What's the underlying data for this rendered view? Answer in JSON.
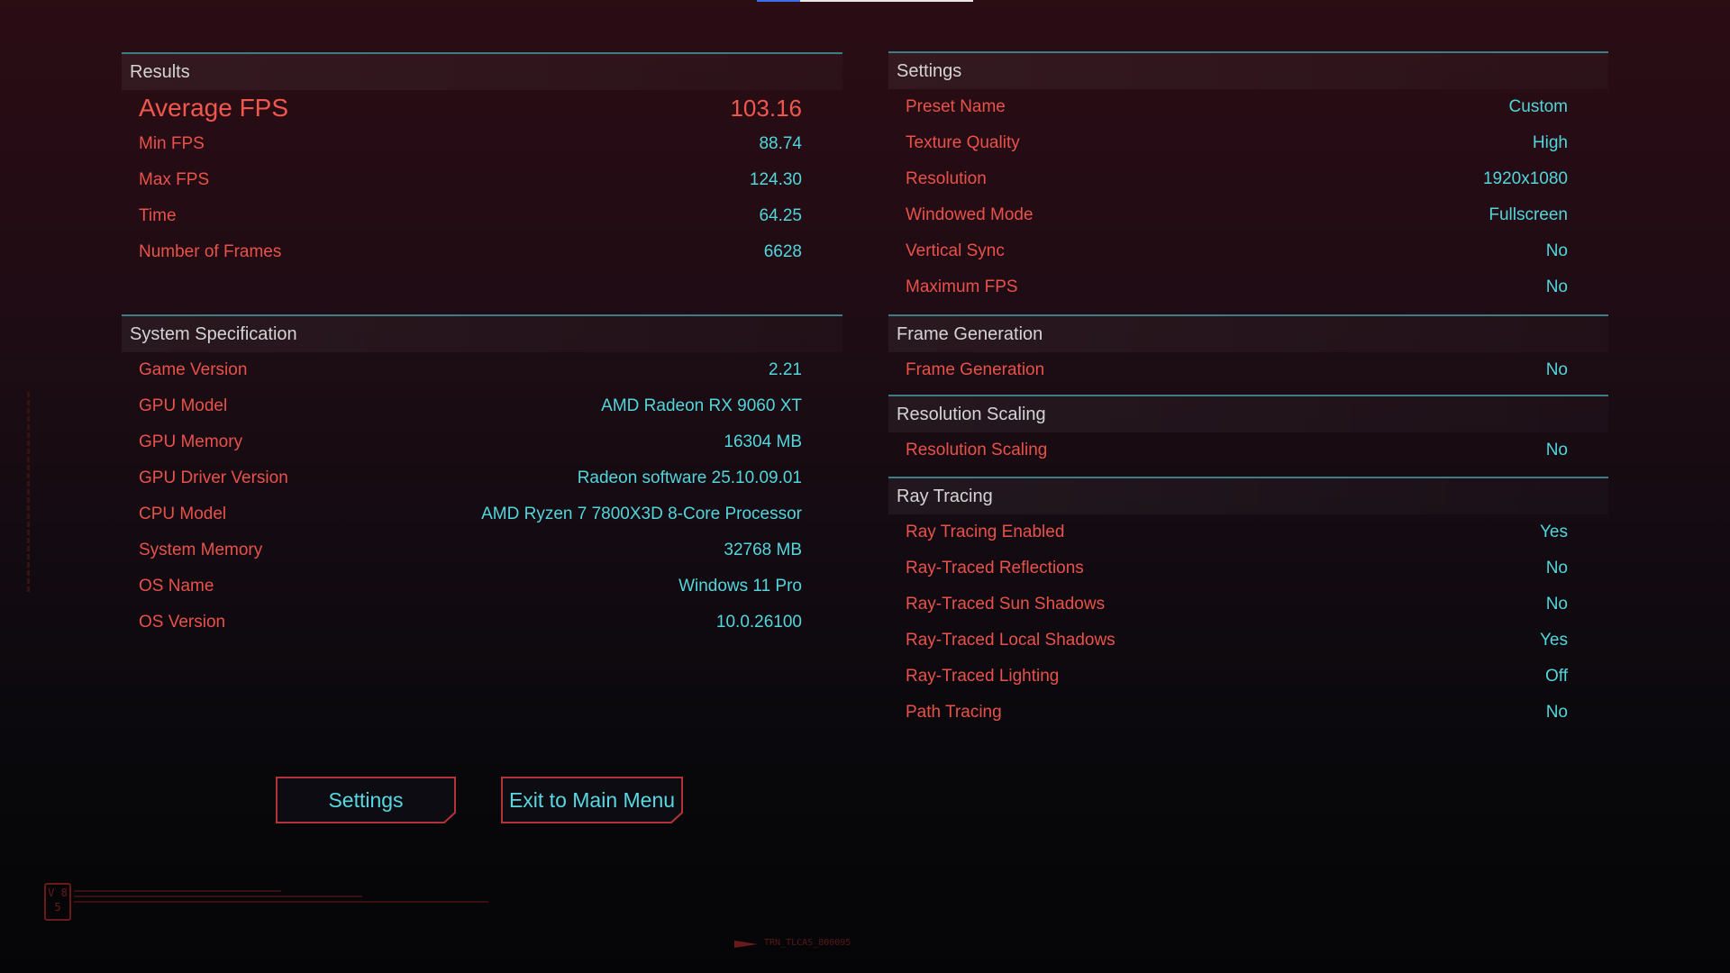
{
  "results": {
    "title": "Results",
    "average": {
      "label": "Average FPS",
      "value": "103.16"
    },
    "rows": [
      {
        "label": "Min FPS",
        "value": "88.74"
      },
      {
        "label": "Max FPS",
        "value": "124.30"
      },
      {
        "label": "Time",
        "value": "64.25"
      },
      {
        "label": "Number of Frames",
        "value": "6628"
      }
    ]
  },
  "system": {
    "title": "System Specification",
    "rows": [
      {
        "label": "Game Version",
        "value": "2.21"
      },
      {
        "label": "GPU Model",
        "value": "AMD Radeon RX 9060 XT"
      },
      {
        "label": "GPU Memory",
        "value": "16304 MB"
      },
      {
        "label": "GPU Driver Version",
        "value": "Radeon software 25.10.09.01"
      },
      {
        "label": "CPU Model",
        "value": "AMD Ryzen 7 7800X3D 8-Core Processor"
      },
      {
        "label": "System Memory",
        "value": "32768 MB"
      },
      {
        "label": "OS Name",
        "value": "Windows 11 Pro"
      },
      {
        "label": "OS Version",
        "value": "10.0.26100"
      }
    ]
  },
  "settings": {
    "title": "Settings",
    "rows": [
      {
        "label": "Preset Name",
        "value": "Custom"
      },
      {
        "label": "Texture Quality",
        "value": "High"
      },
      {
        "label": "Resolution",
        "value": "1920x1080"
      },
      {
        "label": "Windowed Mode",
        "value": "Fullscreen"
      },
      {
        "label": "Vertical Sync",
        "value": "No"
      },
      {
        "label": "Maximum FPS",
        "value": "No"
      }
    ]
  },
  "frame_generation": {
    "title": "Frame Generation",
    "rows": [
      {
        "label": "Frame Generation",
        "value": "No"
      }
    ]
  },
  "resolution_scaling": {
    "title": "Resolution Scaling",
    "rows": [
      {
        "label": "Resolution Scaling",
        "value": "No"
      }
    ]
  },
  "ray_tracing": {
    "title": "Ray Tracing",
    "rows": [
      {
        "label": "Ray Tracing Enabled",
        "value": "Yes"
      },
      {
        "label": "Ray-Traced Reflections",
        "value": "No"
      },
      {
        "label": "Ray-Traced Sun Shadows",
        "value": "No"
      },
      {
        "label": "Ray-Traced Local Shadows",
        "value": "Yes"
      },
      {
        "label": "Ray-Traced Lighting",
        "value": "Off"
      },
      {
        "label": "Path Tracing",
        "value": "No"
      }
    ]
  },
  "buttons": {
    "settings": "Settings",
    "exit": "Exit to Main Menu"
  },
  "footer": {
    "badge": "V 85",
    "code": "TRN_TLCAS_800095"
  },
  "colors": {
    "label": "#e8524a",
    "value": "#52d6dc",
    "divider": "#3f7d86",
    "button_border": "#b0343a"
  }
}
